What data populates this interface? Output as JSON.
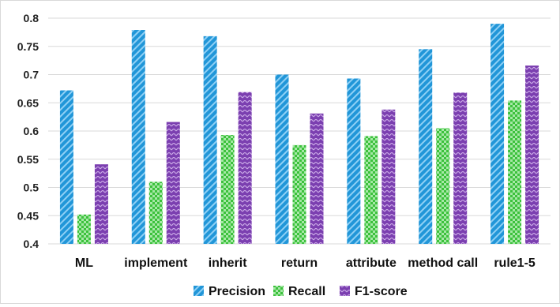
{
  "chart_data": {
    "type": "bar",
    "title": "",
    "xlabel": "",
    "ylabel": "",
    "categories": [
      "ML",
      "implement",
      "inherit",
      "return",
      "attribute",
      "method call",
      "rule1-5"
    ],
    "series": [
      {
        "name": "Precision",
        "color": "#2196d8",
        "values": [
          0.672,
          0.779,
          0.768,
          0.7,
          0.693,
          0.745,
          0.79
        ]
      },
      {
        "name": "Recall",
        "color": "#3cc13c",
        "values": [
          0.452,
          0.51,
          0.593,
          0.575,
          0.591,
          0.605,
          0.654
        ]
      },
      {
        "name": "F1-score",
        "color": "#7b3fb0",
        "values": [
          0.541,
          0.616,
          0.669,
          0.631,
          0.638,
          0.668,
          0.716
        ]
      }
    ],
    "ylim": [
      0.4,
      0.8
    ],
    "yticks": [
      "0.4",
      "0.45",
      "0.5",
      "0.55",
      "0.6",
      "0.65",
      "0.7",
      "0.75",
      "0.8"
    ],
    "grid": true,
    "legend_position": "bottom"
  }
}
